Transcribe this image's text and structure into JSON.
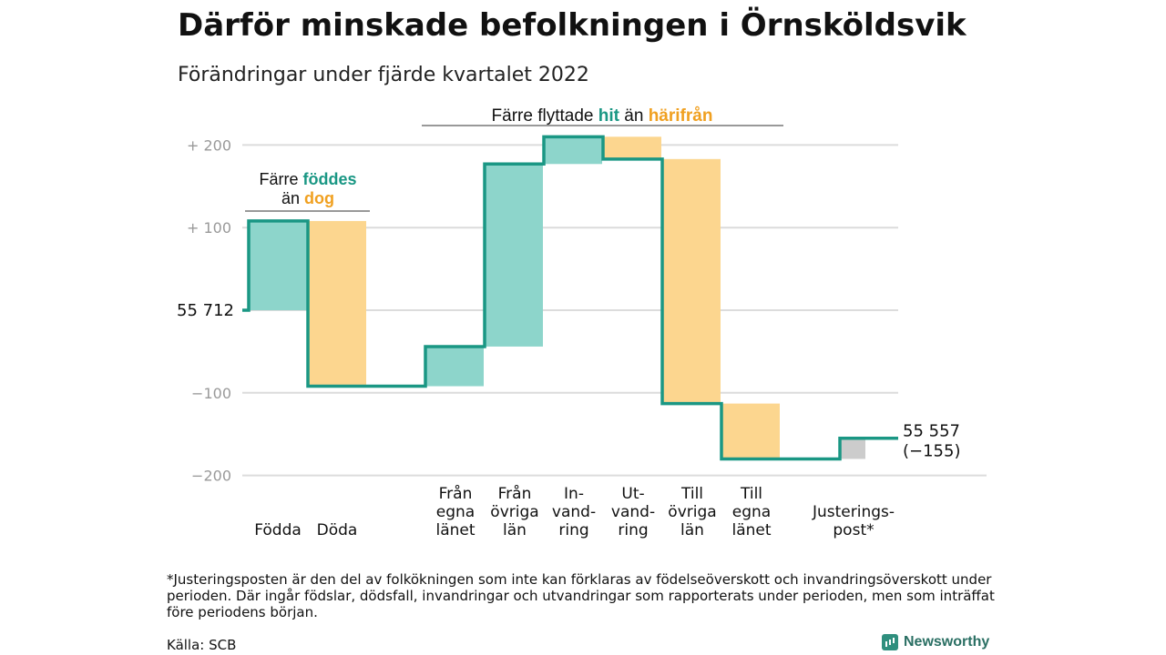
{
  "title": "Därför minskade befolkningen i Örnsköldsvik",
  "subtitle": "Förändringar under fjärde kvartalet 2022",
  "chart_data": {
    "type": "waterfall",
    "start_value": 55712,
    "start_label": "55 712",
    "end_label": "55 557",
    "end_change_label": "(−155)",
    "ylim": [
      -200,
      200
    ],
    "yticks": [
      {
        "value": 200,
        "label": "+ 200"
      },
      {
        "value": 100,
        "label": "+ 100"
      },
      {
        "value": -100,
        "label": "−100"
      },
      {
        "value": -200,
        "label": "−200"
      }
    ],
    "grid": true,
    "colors": {
      "positive": "#8dd5cb",
      "negative": "#fcd68f",
      "adjustment": "#cccccc",
      "line": "#1a9784"
    },
    "steps": [
      {
        "label_lines": [
          "Födda"
        ],
        "value": 108,
        "kind": "positive"
      },
      {
        "label_lines": [
          "Döda"
        ],
        "value": -200,
        "kind": "negative"
      },
      {
        "label_lines": [
          "Från",
          "egna",
          "länet"
        ],
        "value": 48,
        "kind": "positive"
      },
      {
        "label_lines": [
          "Från",
          "övriga",
          "län"
        ],
        "value": 221,
        "kind": "positive"
      },
      {
        "label_lines": [
          "In-",
          "vand-",
          "ring"
        ],
        "value": 33,
        "kind": "positive"
      },
      {
        "label_lines": [
          "Ut-",
          "vand-",
          "ring"
        ],
        "value": -27,
        "kind": "negative"
      },
      {
        "label_lines": [
          "Till",
          "övriga",
          "län"
        ],
        "value": -296,
        "kind": "negative"
      },
      {
        "label_lines": [
          "Till",
          "egna",
          "länet"
        ],
        "value": -67,
        "kind": "negative"
      },
      {
        "label_lines": [
          "Justerings-",
          "post*"
        ],
        "value": 25,
        "kind": "adjustment"
      }
    ],
    "annotations": {
      "births_deaths": {
        "line1": "Färre ",
        "hl1": "föddes",
        "line2": "än ",
        "hl2": "dog"
      },
      "migration": {
        "text": "Färre flyttade ",
        "hl1": "hit",
        "mid": " än ",
        "hl2": "härifrån"
      }
    }
  },
  "footnote": "*Justeringsposten är den del av folkökningen som inte kan förklaras av födelseöverskott och invandringsöverskott under perioden. Där ingår födslar, dödsfall, invandringar och utvandringar som rapporterats under perioden, men som inträffat före periodens början.",
  "source": "Källa: SCB",
  "brand": "Newsworthy",
  "brand_icon": "bar-chart-icon"
}
